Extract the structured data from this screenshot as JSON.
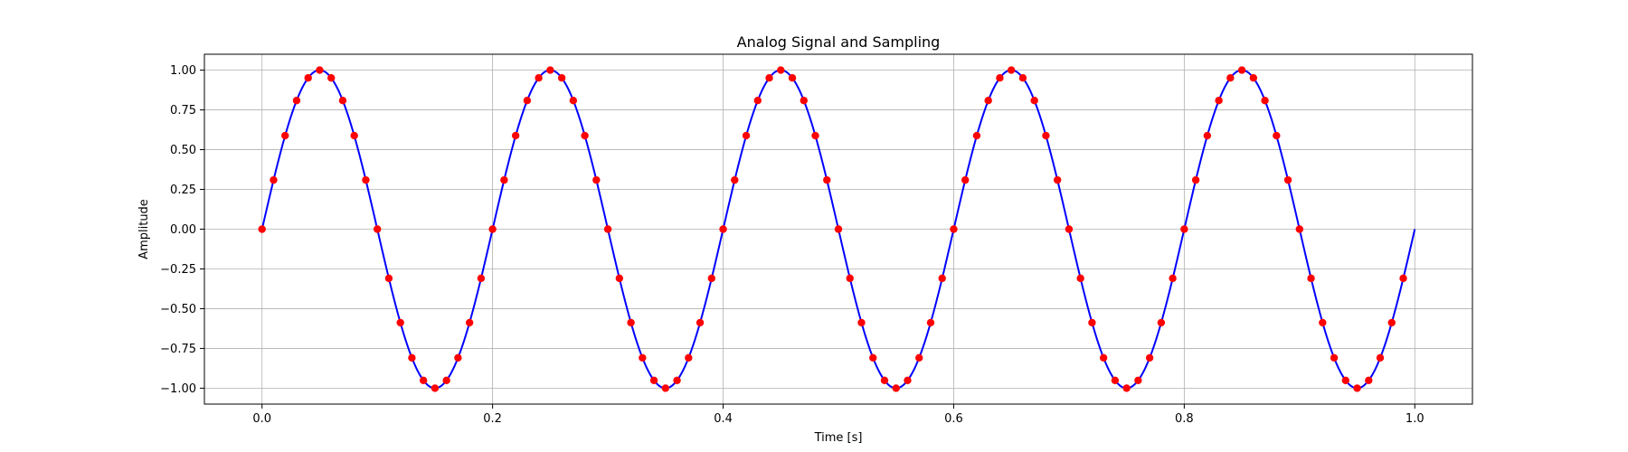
{
  "chart_data": {
    "type": "line",
    "title": "Analog Signal and Sampling",
    "xlabel": "Time [s]",
    "ylabel": "Amplitude",
    "xlim": [
      -0.05,
      1.05
    ],
    "ylim": [
      -1.1,
      1.1
    ],
    "xticks": [
      0.0,
      0.2,
      0.4,
      0.6,
      0.8,
      1.0
    ],
    "xtick_labels": [
      "0.0",
      "0.2",
      "0.4",
      "0.6",
      "0.8",
      "1.0"
    ],
    "yticks": [
      -1.0,
      -0.75,
      -0.5,
      -0.25,
      0.0,
      0.25,
      0.5,
      0.75,
      1.0
    ],
    "ytick_labels": [
      "−1.00",
      "−0.75",
      "−0.50",
      "−0.25",
      "0.00",
      "0.25",
      "0.50",
      "0.75",
      "1.00"
    ],
    "grid": true,
    "series": [
      {
        "kind": "line",
        "color": "#0000ff",
        "x_range": [
          0,
          1
        ],
        "frequency_hz": 5,
        "amplitude": 1
      },
      {
        "kind": "scatter",
        "color": "#ff0000",
        "x": [
          0.0,
          0.01,
          0.02,
          0.03,
          0.04,
          0.05,
          0.06,
          0.07,
          0.08,
          0.09,
          0.1,
          0.11,
          0.12,
          0.13,
          0.14,
          0.15,
          0.16,
          0.17,
          0.18,
          0.19,
          0.2,
          0.21,
          0.22,
          0.23,
          0.24,
          0.25,
          0.26,
          0.27,
          0.28,
          0.29,
          0.3,
          0.31,
          0.32,
          0.33,
          0.34,
          0.35,
          0.36,
          0.37,
          0.38,
          0.39,
          0.4,
          0.41,
          0.42,
          0.43,
          0.44,
          0.45,
          0.46,
          0.47,
          0.48,
          0.49,
          0.5,
          0.51,
          0.52,
          0.53,
          0.54,
          0.55,
          0.56,
          0.57,
          0.58,
          0.59,
          0.6,
          0.61,
          0.62,
          0.63,
          0.64,
          0.65,
          0.66,
          0.67,
          0.68,
          0.69,
          0.7,
          0.71,
          0.72,
          0.73,
          0.74,
          0.75,
          0.76,
          0.77,
          0.78,
          0.79,
          0.8,
          0.81,
          0.82,
          0.83,
          0.84,
          0.85,
          0.86,
          0.87,
          0.88,
          0.89,
          0.9,
          0.91,
          0.92,
          0.93,
          0.94,
          0.95,
          0.96,
          0.97,
          0.98,
          0.99
        ],
        "y": [
          0.0,
          0.309,
          0.588,
          0.809,
          0.951,
          1.0,
          0.951,
          0.809,
          0.588,
          0.309,
          0.0,
          -0.309,
          -0.588,
          -0.809,
          -0.951,
          -1.0,
          -0.951,
          -0.809,
          -0.588,
          -0.309,
          0.0,
          0.309,
          0.588,
          0.809,
          0.951,
          1.0,
          0.951,
          0.809,
          0.588,
          0.309,
          0.0,
          -0.309,
          -0.588,
          -0.809,
          -0.951,
          -1.0,
          -0.951,
          -0.809,
          -0.588,
          -0.309,
          0.0,
          0.309,
          0.588,
          0.809,
          0.951,
          1.0,
          0.951,
          0.809,
          0.588,
          0.309,
          0.0,
          -0.309,
          -0.588,
          -0.809,
          -0.951,
          -1.0,
          -0.951,
          -0.809,
          -0.588,
          -0.309,
          0.0,
          0.309,
          0.588,
          0.809,
          0.951,
          1.0,
          0.951,
          0.809,
          0.588,
          0.309,
          0.0,
          -0.309,
          -0.588,
          -0.809,
          -0.951,
          -1.0,
          -0.951,
          -0.809,
          -0.588,
          -0.309,
          0.0,
          0.309,
          0.588,
          0.809,
          0.951,
          1.0,
          0.951,
          0.809,
          0.588,
          0.309,
          0.0,
          -0.309,
          -0.588,
          -0.809,
          -0.951,
          -1.0,
          -0.951,
          -0.809,
          -0.588,
          -0.309
        ]
      }
    ]
  }
}
